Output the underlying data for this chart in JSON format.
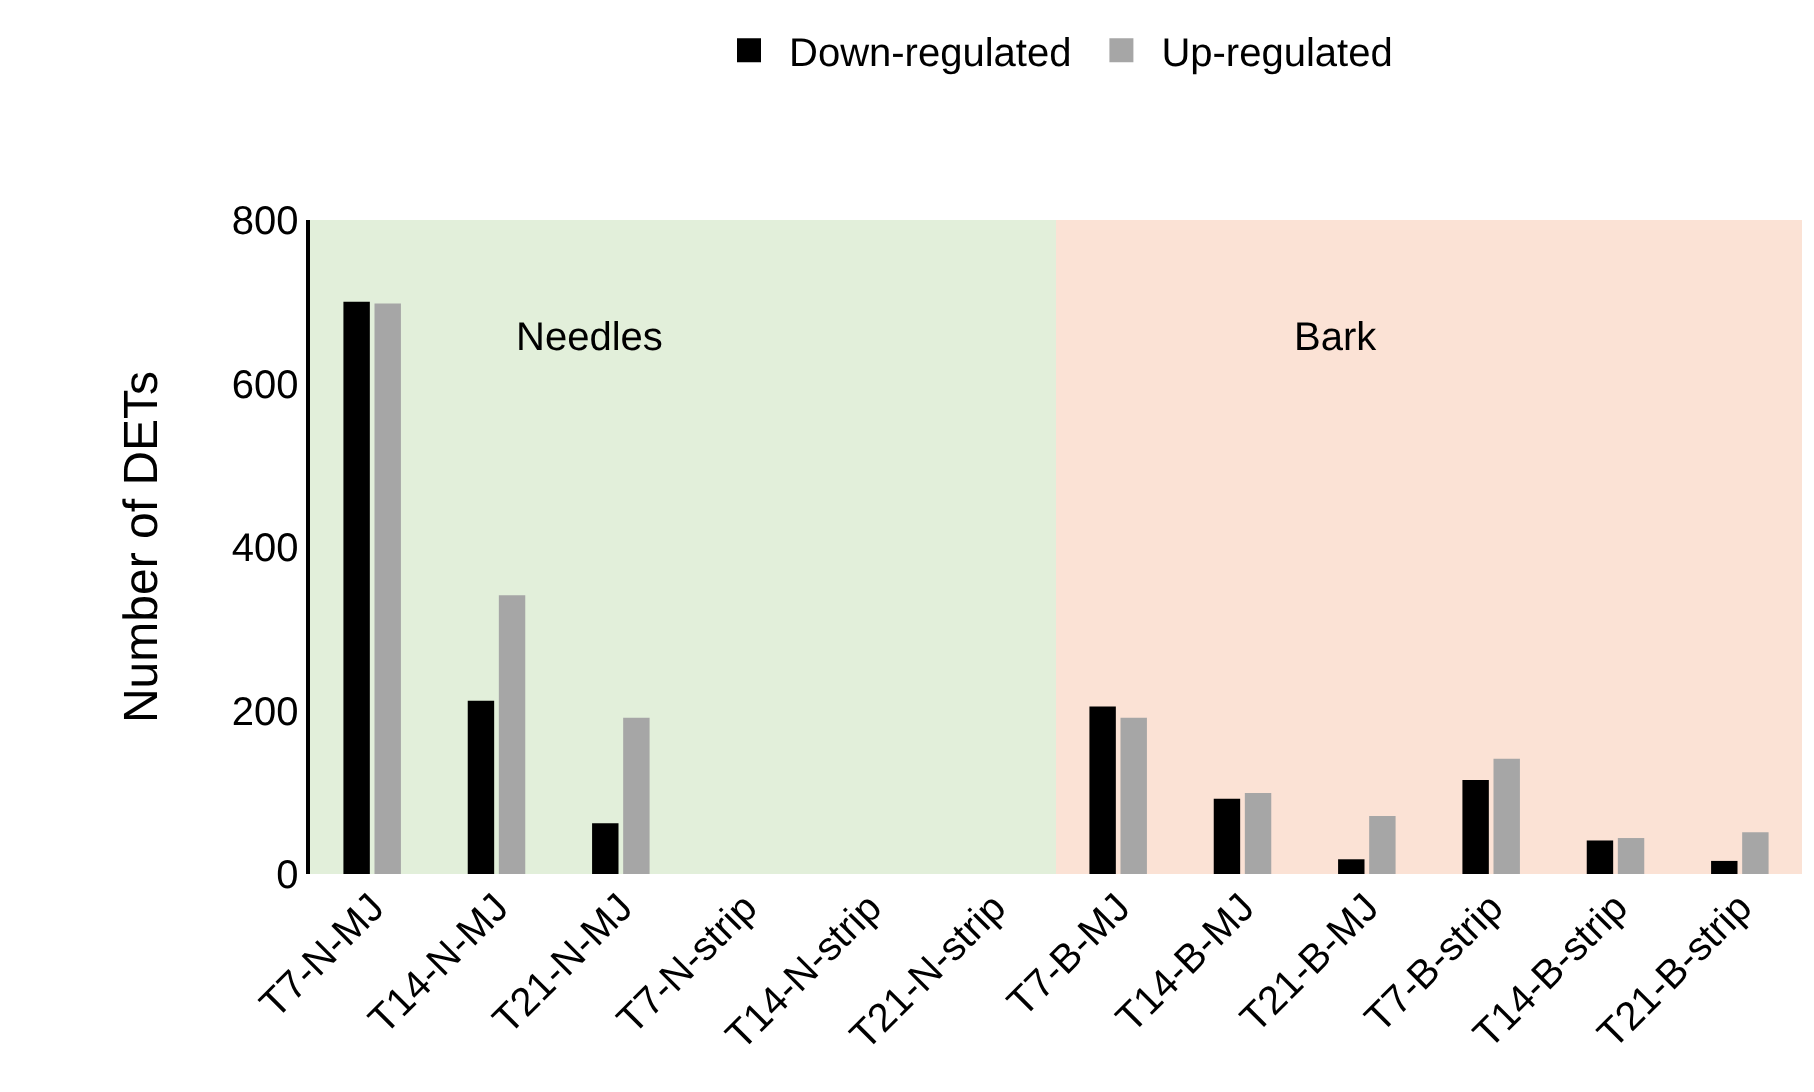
{
  "chart_data": {
    "type": "bar",
    "ylabel": "Number of DETs",
    "categories": [
      "T7-N-MJ",
      "T14-N-MJ",
      "T21-N-MJ",
      "T7-N-strip",
      "T14-N-strip",
      "T21-N-strip",
      "T7-B-MJ",
      "T14-B-MJ",
      "T21-B-MJ",
      "T7-B-strip",
      "T14-B-strip",
      "T21-B-strip"
    ],
    "series": [
      {
        "name": "Down-regulated",
        "color": "#000000",
        "values": [
          700,
          212,
          62,
          0,
          0,
          0,
          205,
          92,
          18,
          115,
          41,
          16
        ]
      },
      {
        "name": "Up-regulated",
        "color": "#a6a6a6",
        "values": [
          698,
          341,
          191,
          0,
          0,
          0,
          191,
          99,
          71,
          141,
          44,
          51
        ]
      }
    ],
    "ylim": [
      0,
      800
    ],
    "yticks": [
      0,
      200,
      400,
      600,
      800
    ],
    "grid": false,
    "legend": "top",
    "bands": [
      {
        "axis": "x",
        "from": "T7-N-MJ",
        "to": "T21-N-strip",
        "label": "Needles",
        "color": "#e2efda"
      },
      {
        "axis": "x",
        "from": "T7-B-MJ",
        "to": "T21-B-strip",
        "label": "Bark",
        "color": "#fbe2d5"
      }
    ]
  }
}
